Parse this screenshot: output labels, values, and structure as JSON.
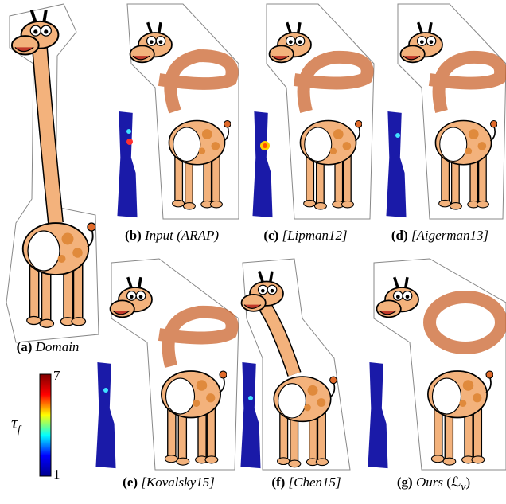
{
  "panels": [
    {
      "letter": "(a)",
      "name": "Domain"
    },
    {
      "letter": "(b)",
      "name": "Input (ARAP)"
    },
    {
      "letter": "(c)",
      "name": "[Lipman12]"
    },
    {
      "letter": "(d)",
      "name": "[Aigerman13]"
    },
    {
      "letter": "(e)",
      "name": "[Kovalsky15]"
    },
    {
      "letter": "(f)",
      "name": "[Chen15]"
    },
    {
      "letter": "(g)",
      "name": "Ours",
      "math": [
        "(ℒ",
        "ν",
        ")"
      ]
    }
  ],
  "colorbar": {
    "symbol": "τ",
    "symbol_sub": "f",
    "max": "7",
    "min": "1"
  }
}
